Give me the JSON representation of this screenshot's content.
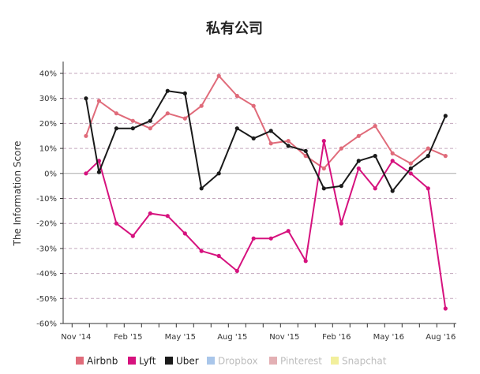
{
  "chart_data": {
    "type": "line",
    "title": "私有公司",
    "ylabel": "The Information Score",
    "xlabel": "",
    "ylim": [
      -60,
      40
    ],
    "yticks": [
      40,
      30,
      20,
      10,
      0,
      -10,
      -20,
      -30,
      -40,
      -50,
      -60
    ],
    "ytick_labels": [
      "40%",
      "30%",
      "20%",
      "10%",
      "0%",
      "-10%",
      "-20%",
      "-30%",
      "-40%",
      "-50%",
      "-60%"
    ],
    "x_ticks": [
      {
        "label": "Nov '14",
        "index": 0
      },
      {
        "label": "Feb '15",
        "index": 3
      },
      {
        "label": "May '15",
        "index": 6
      },
      {
        "label": "Aug '15",
        "index": 9
      },
      {
        "label": "Nov '15",
        "index": 12
      },
      {
        "label": "Feb '16",
        "index": 15
      },
      {
        "label": "May '16",
        "index": 18
      },
      {
        "label": "Aug '16",
        "index": 21
      }
    ],
    "grid": true,
    "legend_position": "bottom",
    "series": [
      {
        "name": "Airbnb",
        "color": "#e06b7a",
        "visible": true,
        "points": [
          [
            0.3,
            15
          ],
          [
            1.05,
            29
          ],
          [
            2.05,
            24
          ],
          [
            3,
            21
          ],
          [
            4,
            18
          ],
          [
            5,
            24
          ],
          [
            6,
            22
          ],
          [
            6.95,
            27
          ],
          [
            7.95,
            39
          ],
          [
            9,
            31
          ],
          [
            9.95,
            27
          ],
          [
            10.95,
            12
          ],
          [
            11.95,
            13
          ],
          [
            12.95,
            7
          ],
          [
            14,
            2
          ],
          [
            15,
            10
          ],
          [
            16,
            15
          ],
          [
            16.95,
            19
          ],
          [
            17.95,
            8
          ],
          [
            19,
            4
          ],
          [
            20,
            10
          ],
          [
            21,
            7
          ]
        ]
      },
      {
        "name": "Lyft",
        "color": "#d6127e",
        "visible": true,
        "points": [
          [
            0.3,
            0
          ],
          [
            1.05,
            5
          ],
          [
            2.05,
            -20
          ],
          [
            3,
            -25
          ],
          [
            4,
            -16
          ],
          [
            5,
            -17
          ],
          [
            6,
            -24
          ],
          [
            6.95,
            -31
          ],
          [
            7.95,
            -33
          ],
          [
            9,
            -39
          ],
          [
            9.95,
            -26
          ],
          [
            10.95,
            -26
          ],
          [
            11.95,
            -23
          ],
          [
            12.95,
            -35
          ],
          [
            14,
            13
          ],
          [
            15,
            -20
          ],
          [
            16,
            2
          ],
          [
            16.95,
            -6
          ],
          [
            17.95,
            5
          ],
          [
            19,
            0
          ],
          [
            20,
            -6
          ],
          [
            21,
            -54
          ]
        ]
      },
      {
        "name": "Uber",
        "color": "#1a1a1a",
        "visible": true,
        "points": [
          [
            0.3,
            30
          ],
          [
            1.05,
            0.5
          ],
          [
            2.05,
            18
          ],
          [
            3,
            18
          ],
          [
            4,
            21
          ],
          [
            5,
            33
          ],
          [
            6,
            32
          ],
          [
            6.95,
            -6
          ],
          [
            7.95,
            0
          ],
          [
            9,
            18
          ],
          [
            9.95,
            14
          ],
          [
            10.95,
            17
          ],
          [
            11.95,
            11
          ],
          [
            12.95,
            9
          ],
          [
            14,
            -6
          ],
          [
            15,
            -5
          ],
          [
            16,
            5
          ],
          [
            16.95,
            7
          ],
          [
            17.95,
            -7
          ],
          [
            19,
            2
          ],
          [
            20,
            7
          ],
          [
            21,
            23
          ]
        ]
      },
      {
        "name": "Dropbox",
        "color": "#a9c6ea",
        "visible": false,
        "points": []
      },
      {
        "name": "Pinterest",
        "color": "#e3b0b4",
        "visible": false,
        "points": []
      },
      {
        "name": "Snapchat",
        "color": "#f2ef9c",
        "visible": false,
        "points": []
      }
    ]
  }
}
